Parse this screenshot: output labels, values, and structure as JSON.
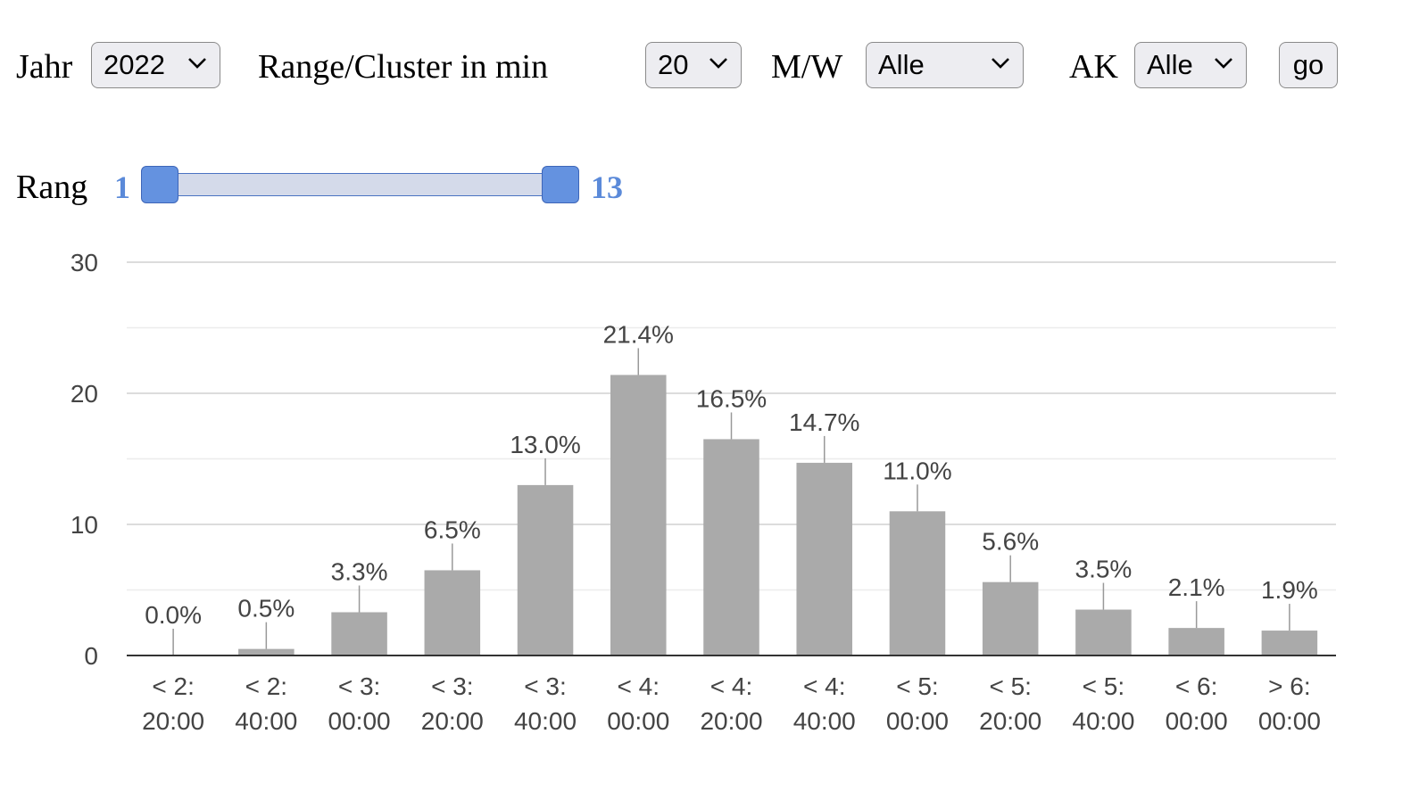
{
  "controls": {
    "year_label": "Jahr",
    "year_value": "2022",
    "range_label": "Range/Cluster in min",
    "range_value": "20",
    "gender_label": "M/W",
    "gender_value": "Alle",
    "ak_label": "AK",
    "ak_value": "Alle",
    "go_label": "go"
  },
  "rank_slider": {
    "label": "Rang",
    "min_value": "1",
    "max_value": "13"
  },
  "colors": {
    "bar": "#aaaaaa",
    "slider_accent": "#6492e0"
  },
  "chart_data": {
    "type": "bar",
    "categories": [
      [
        "< 2:",
        "20:00"
      ],
      [
        "< 2:",
        "40:00"
      ],
      [
        "< 3:",
        "00:00"
      ],
      [
        "< 3:",
        "20:00"
      ],
      [
        "< 3:",
        "40:00"
      ],
      [
        "< 4:",
        "00:00"
      ],
      [
        "< 4:",
        "20:00"
      ],
      [
        "< 4:",
        "40:00"
      ],
      [
        "< 5:",
        "00:00"
      ],
      [
        "< 5:",
        "20:00"
      ],
      [
        "< 5:",
        "40:00"
      ],
      [
        "< 6:",
        "00:00"
      ],
      [
        "> 6:",
        "00:00"
      ]
    ],
    "values": [
      0.0,
      0.5,
      3.3,
      6.5,
      13.0,
      21.4,
      16.5,
      14.7,
      11.0,
      5.6,
      3.5,
      2.1,
      1.9
    ],
    "data_labels": [
      "0.0%",
      "0.5%",
      "3.3%",
      "6.5%",
      "13.0%",
      "21.4%",
      "16.5%",
      "14.7%",
      "11.0%",
      "5.6%",
      "3.5%",
      "2.1%",
      "1.9%"
    ],
    "y_ticks": [
      0,
      10,
      20,
      30
    ],
    "ylim": [
      0,
      30
    ],
    "grid": true,
    "minor_gridlines": true,
    "title": "",
    "xlabel": "",
    "ylabel": ""
  }
}
